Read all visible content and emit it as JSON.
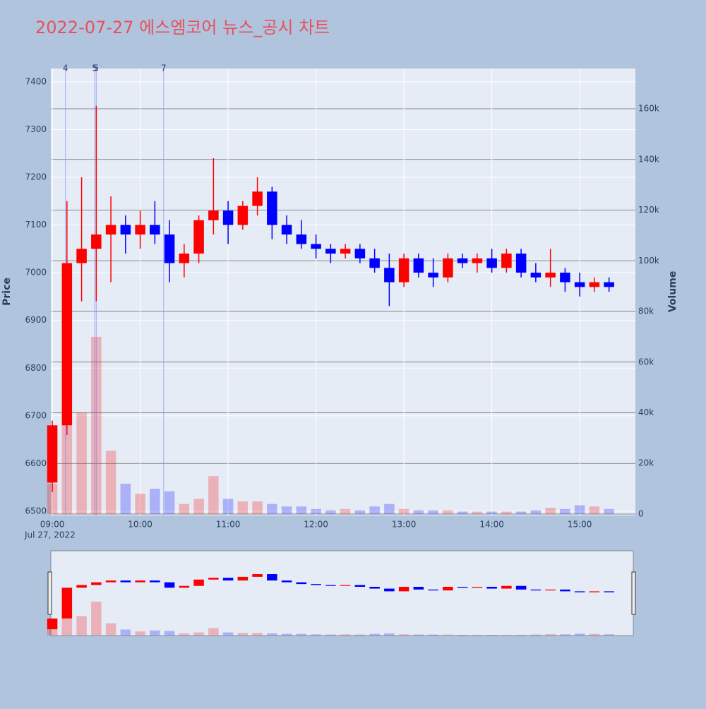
{
  "chart_data": {
    "type": "candlestick",
    "title": "2022-07-27 에스엠코어 뉴스_공시 차트",
    "y_title": "Price",
    "y2_title": "Volume",
    "x_date_label": "Jul 27, 2022",
    "up_color": "#ff0000",
    "down_color": "#0000ff",
    "x": [
      "09:00",
      "09:10",
      "09:20",
      "09:30",
      "09:40",
      "09:50",
      "10:00",
      "10:10",
      "10:20",
      "10:30",
      "10:40",
      "10:50",
      "11:00",
      "11:10",
      "11:20",
      "11:30",
      "11:40",
      "11:50",
      "12:00",
      "12:10",
      "12:20",
      "12:30",
      "12:40",
      "12:50",
      "13:00",
      "13:10",
      "13:20",
      "13:30",
      "13:40",
      "13:50",
      "14:00",
      "14:10",
      "14:20",
      "14:30",
      "14:40",
      "14:50",
      "15:00",
      "15:10",
      "15:20"
    ],
    "open": [
      6560,
      6680,
      7020,
      7050,
      7080,
      7100,
      7080,
      7100,
      7080,
      7020,
      7040,
      7110,
      7130,
      7100,
      7140,
      7170,
      7100,
      7080,
      7060,
      7050,
      7040,
      7050,
      7030,
      7010,
      6980,
      7030,
      7000,
      6990,
      7030,
      7020,
      7030,
      7010,
      7040,
      7000,
      6990,
      7000,
      6980,
      6970,
      6980
    ],
    "high": [
      6690,
      7150,
      7200,
      7350,
      7160,
      7120,
      7130,
      7150,
      7110,
      7060,
      7120,
      7240,
      7150,
      7150,
      7200,
      7180,
      7120,
      7110,
      7080,
      7060,
      7060,
      7060,
      7050,
      7040,
      7040,
      7040,
      7030,
      7040,
      7040,
      7040,
      7050,
      7050,
      7050,
      7020,
      7050,
      7010,
      7000,
      6990,
      6990
    ],
    "low": [
      6540,
      6660,
      6940,
      6940,
      6980,
      7040,
      7050,
      7060,
      6980,
      6990,
      7020,
      7080,
      7060,
      7090,
      7120,
      7070,
      7060,
      7050,
      7030,
      7020,
      7030,
      7020,
      7000,
      6930,
      6970,
      6990,
      6970,
      6980,
      7010,
      7000,
      7000,
      7000,
      6990,
      6980,
      6970,
      6960,
      6950,
      6960,
      6960
    ],
    "close": [
      6680,
      7020,
      7050,
      7080,
      7100,
      7080,
      7100,
      7080,
      7020,
      7040,
      7110,
      7130,
      7100,
      7140,
      7170,
      7100,
      7080,
      7060,
      7050,
      7040,
      7050,
      7030,
      7010,
      6980,
      7030,
      7000,
      6990,
      7030,
      7020,
      7030,
      7010,
      7040,
      7000,
      6990,
      7000,
      6980,
      6970,
      6980,
      6970
    ],
    "volume": [
      12000,
      35000,
      40000,
      70000,
      25000,
      12000,
      8000,
      10000,
      9000,
      4000,
      6000,
      15000,
      6000,
      5000,
      5000,
      4000,
      3000,
      3000,
      2000,
      1500,
      2000,
      1500,
      3000,
      4000,
      2000,
      1500,
      1500,
      1500,
      1000,
      1000,
      1000,
      1000,
      1000,
      1500,
      2500,
      2000,
      3500,
      3000,
      2000
    ],
    "xlim": [
      "08:59",
      "15:38"
    ],
    "xticks": [
      "09:00",
      "10:00",
      "11:00",
      "12:00",
      "13:00",
      "14:00",
      "15:00"
    ],
    "ylim": [
      6491,
      7428
    ],
    "yticks": [
      6500,
      6600,
      6700,
      6800,
      6900,
      7000,
      7100,
      7200,
      7300,
      7400
    ],
    "y2lim": [
      -560,
      175900
    ],
    "y2ticks": [
      0,
      {
        "value": 20000,
        "label": "20k"
      },
      {
        "value": 40000,
        "label": "40k"
      },
      {
        "value": 60000,
        "label": "60k"
      },
      {
        "value": 80000,
        "label": "80k"
      },
      {
        "value": 100000,
        "label": "100k"
      },
      {
        "value": 120000,
        "label": "120k"
      },
      {
        "value": 140000,
        "label": "140k"
      },
      {
        "value": 160000,
        "label": "160k"
      }
    ],
    "annotations": [
      {
        "x": "09:09",
        "text": "4"
      },
      {
        "x": "09:29",
        "text": "5"
      },
      {
        "x": "09:30",
        "text": "5"
      },
      {
        "x": "10:16",
        "text": "7"
      }
    ],
    "grid": true
  }
}
